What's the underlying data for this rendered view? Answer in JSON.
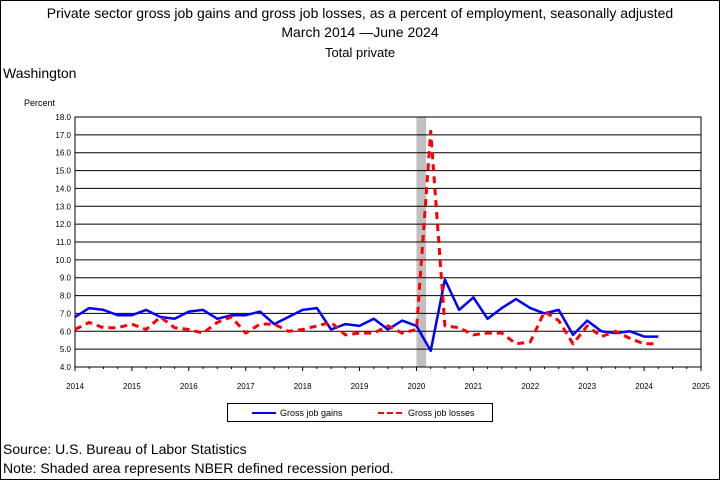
{
  "header": {
    "title": "Private sector gross job gains and gross job losses, as a percent of employment, seasonally adjusted",
    "date_range": "March 2014 —June 2024",
    "subtitle": "Total private",
    "region": "Washington"
  },
  "footer": {
    "source": "Source: U.S. Bureau of Labor Statistics",
    "note": "Note: Shaded area represents NBER defined recession period."
  },
  "chart_data": {
    "type": "line",
    "ylabel": "Percent",
    "ylim": [
      4.0,
      18.0
    ],
    "yticks": [
      "4.0",
      "5.0",
      "6.0",
      "7.0",
      "8.0",
      "9.0",
      "10.0",
      "11.0",
      "12.0",
      "13.0",
      "14.0",
      "15.0",
      "16.0",
      "17.0",
      "18.0"
    ],
    "xlim": [
      2014,
      2025
    ],
    "xticks": [
      "2014",
      "2015",
      "2016",
      "2017",
      "2018",
      "2019",
      "2020",
      "2021",
      "2022",
      "2023",
      "2024",
      "2025"
    ],
    "grid": true,
    "recession": {
      "start": 2020.0,
      "end": 2020.17,
      "color": "#c0c0c0"
    },
    "legend_position": "bottom",
    "x": [
      2014.0,
      2014.25,
      2014.5,
      2014.75,
      2015.0,
      2015.25,
      2015.5,
      2015.75,
      2016.0,
      2016.25,
      2016.5,
      2016.75,
      2017.0,
      2017.25,
      2017.5,
      2017.75,
      2018.0,
      2018.25,
      2018.5,
      2018.75,
      2019.0,
      2019.25,
      2019.5,
      2019.75,
      2020.0,
      2020.25,
      2020.5,
      2020.75,
      2021.0,
      2021.25,
      2021.5,
      2021.75,
      2022.0,
      2022.25,
      2022.5,
      2022.75,
      2023.0,
      2023.25,
      2023.5,
      2023.75,
      2024.0,
      2024.25
    ],
    "series": [
      {
        "name": "Gross job gains",
        "color": "#0000ff",
        "dash": "solid",
        "values": [
          6.8,
          7.3,
          7.2,
          6.9,
          6.9,
          7.2,
          6.8,
          6.7,
          7.1,
          7.2,
          6.7,
          6.9,
          6.9,
          7.1,
          6.4,
          6.8,
          7.2,
          7.3,
          6.1,
          6.4,
          6.3,
          6.7,
          6.1,
          6.6,
          6.3,
          4.9,
          8.9,
          7.2,
          7.9,
          6.7,
          7.3,
          7.8,
          7.3,
          7.0,
          7.2,
          5.8,
          6.6,
          6.0,
          5.9,
          6.0,
          5.7,
          5.7
        ]
      },
      {
        "name": "Gross job losses",
        "color": "#ff0000",
        "dash": "dashed",
        "values": [
          6.1,
          6.5,
          6.2,
          6.2,
          6.4,
          6.1,
          6.8,
          6.2,
          6.1,
          5.9,
          6.5,
          6.8,
          5.9,
          6.4,
          6.4,
          6.0,
          6.1,
          6.3,
          6.5,
          5.8,
          5.9,
          5.9,
          6.3,
          5.9,
          6.1,
          17.2,
          6.3,
          6.2,
          5.8,
          5.9,
          5.9,
          5.3,
          5.4,
          7.1,
          6.6,
          5.3,
          6.3,
          5.7,
          6.0,
          5.6,
          5.3,
          5.3
        ]
      }
    ]
  }
}
